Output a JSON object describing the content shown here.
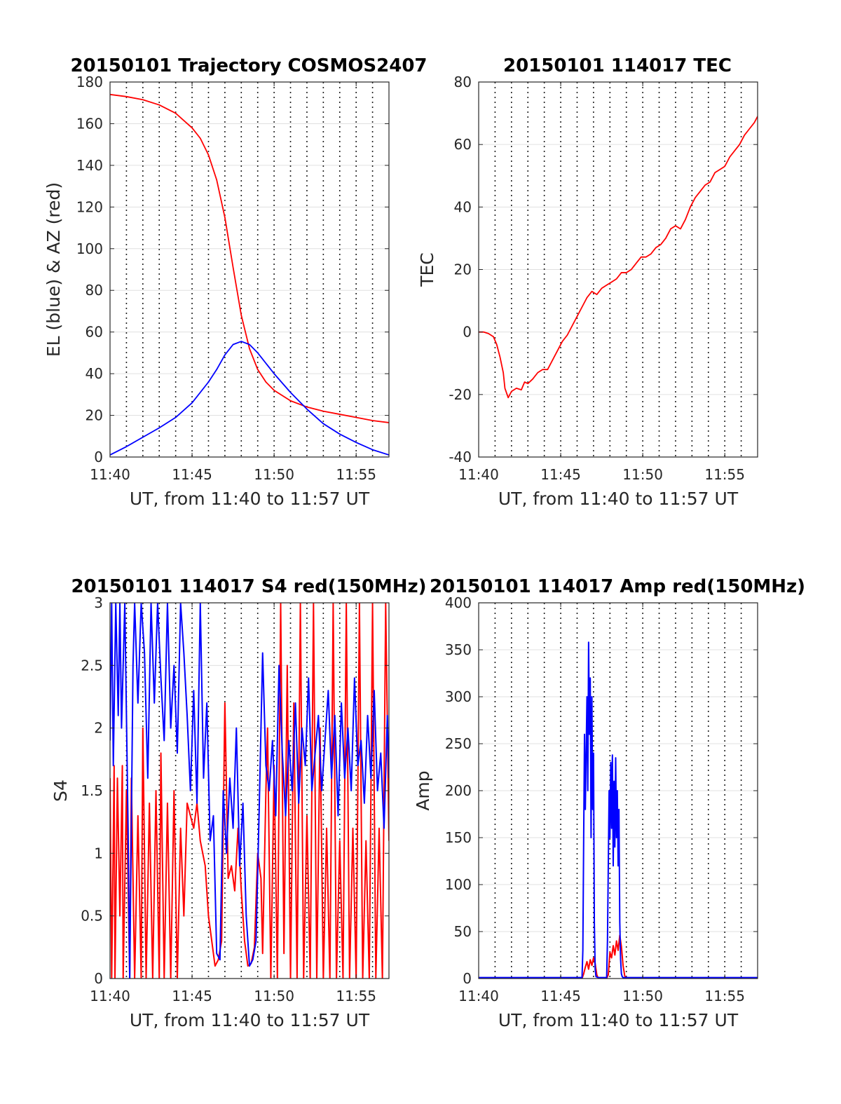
{
  "colors": {
    "red": "#ff0000",
    "blue": "#0000ff"
  },
  "chart_data": [
    {
      "type": "line",
      "title": "20150101 Trajectory COSMOS2407",
      "xlabel": "UT, from 11:40 to 11:57 UT",
      "ylabel": "EL (blue) & AZ (red)",
      "xlim": [
        0,
        17
      ],
      "ylim": [
        0,
        180
      ],
      "xticks": [
        0,
        5,
        10,
        15
      ],
      "xtick_labels": [
        "11:40",
        "11:45",
        "11:50",
        "11:55"
      ],
      "yticks": [
        0,
        20,
        40,
        60,
        80,
        100,
        120,
        140,
        160,
        180
      ],
      "ytick_labels": [
        "0",
        "20",
        "40",
        "60",
        "80",
        "100",
        "120",
        "140",
        "160",
        "180"
      ],
      "vgrid_minutes": [
        1,
        2,
        3,
        4,
        5,
        6,
        7,
        8,
        9,
        10,
        11,
        12,
        13,
        14,
        15,
        16
      ],
      "series": [
        {
          "color": "red",
          "x": [
            0,
            1,
            2,
            3,
            4,
            5,
            5.5,
            6,
            6.5,
            7,
            7.5,
            8,
            8.5,
            9,
            9.5,
            10,
            11,
            12,
            13,
            14,
            15,
            16,
            17
          ],
          "y": [
            174,
            173,
            171.5,
            169,
            165,
            158,
            153,
            145,
            133,
            115,
            91,
            68,
            52,
            42,
            36,
            32,
            27,
            24,
            22,
            20.5,
            19,
            17.5,
            16.5
          ]
        },
        {
          "color": "blue",
          "x": [
            0,
            1,
            2,
            3,
            4,
            5,
            6,
            6.5,
            7,
            7.5,
            8,
            8.5,
            9,
            10,
            11,
            12,
            13,
            14,
            15,
            16,
            17
          ],
          "y": [
            1,
            5,
            9.5,
            14,
            19,
            26,
            36,
            42,
            49,
            54,
            55.5,
            54,
            50,
            40,
            31,
            23,
            16,
            11,
            7,
            3.5,
            1
          ]
        }
      ]
    },
    {
      "type": "line",
      "title": "20150101 114017 TEC",
      "xlabel": "UT, from 11:40 to 11:57 UT",
      "ylabel": "TEC",
      "xlim": [
        0,
        17
      ],
      "ylim": [
        -40,
        80
      ],
      "xticks": [
        0,
        5,
        10,
        15
      ],
      "xtick_labels": [
        "11:40",
        "11:45",
        "11:50",
        "11:55"
      ],
      "yticks": [
        -40,
        -20,
        0,
        20,
        40,
        60,
        80
      ],
      "ytick_labels": [
        "-40",
        "-20",
        "0",
        "20",
        "40",
        "60",
        "80"
      ],
      "vgrid_minutes": [
        1,
        2,
        3,
        4,
        5,
        6,
        7,
        8,
        9,
        10,
        11,
        12,
        13,
        14,
        15,
        16
      ],
      "series": [
        {
          "color": "red",
          "x": [
            0,
            0.3,
            0.6,
            0.9,
            1.1,
            1.3,
            1.5,
            1.6,
            1.8,
            2.0,
            2.3,
            2.6,
            2.8,
            3.0,
            3.3,
            3.6,
            3.9,
            4.2,
            4.5,
            4.8,
            5.1,
            5.4,
            5.7,
            6.0,
            6.3,
            6.6,
            6.9,
            7.2,
            7.5,
            7.8,
            8.1,
            8.4,
            8.7,
            9.0,
            9.3,
            9.6,
            9.9,
            10.2,
            10.5,
            10.8,
            11.1,
            11.4,
            11.7,
            12.0,
            12.3,
            12.6,
            12.9,
            13.2,
            13.5,
            13.8,
            14.1,
            14.4,
            14.7,
            15.0,
            15.3,
            15.6,
            15.9,
            16.2,
            16.5,
            16.8,
            17.0
          ],
          "y": [
            0,
            0,
            -0.5,
            -1.5,
            -4,
            -8,
            -13,
            -18,
            -21,
            -19,
            -18,
            -18.5,
            -16,
            -16.5,
            -15,
            -13,
            -12,
            -12,
            -9,
            -6,
            -3,
            -1,
            2,
            5,
            8,
            11,
            13,
            12,
            14,
            15,
            16,
            17,
            19,
            19,
            20,
            22,
            24,
            24,
            25,
            27,
            28,
            30,
            33,
            34,
            33,
            36,
            40,
            43,
            45,
            47,
            48,
            51,
            52,
            53,
            56,
            58,
            60,
            63,
            65,
            67,
            69
          ]
        }
      ]
    },
    {
      "type": "line",
      "title": "20150101 114017 S4 red(150MHz)",
      "xlabel": "UT, from 11:40 to 11:57 UT",
      "ylabel": "S4",
      "xlim": [
        0,
        17
      ],
      "ylim": [
        0,
        3
      ],
      "xticks": [
        0,
        5,
        10,
        15
      ],
      "xtick_labels": [
        "11:40",
        "11:45",
        "11:50",
        "11:55"
      ],
      "yticks": [
        0,
        0.5,
        1,
        1.5,
        2,
        2.5,
        3
      ],
      "ytick_labels": [
        "0",
        "0.5",
        "1",
        "1.5",
        "2",
        "2.5",
        "3"
      ],
      "vgrid_minutes": [
        1,
        2,
        3,
        4,
        5,
        6,
        7,
        8,
        9,
        10,
        11,
        12,
        13,
        14,
        15,
        16
      ],
      "series": [
        {
          "color": "red",
          "x": [
            0,
            0.1,
            0.25,
            0.3,
            0.45,
            0.6,
            0.75,
            0.8,
            1.0,
            1.2,
            1.3,
            1.5,
            1.7,
            1.9,
            2.0,
            2.2,
            2.4,
            2.6,
            2.8,
            3.0,
            3.1,
            3.3,
            3.5,
            3.7,
            3.9,
            4.1,
            4.3,
            4.5,
            4.7,
            4.9,
            5.1,
            5.3,
            5.5,
            5.8,
            6.0,
            6.2,
            6.4,
            6.6,
            6.8,
            7.0,
            7.2,
            7.4,
            7.6,
            7.8,
            8.0,
            8.2,
            8.4,
            8.6,
            8.8,
            9.0,
            9.2,
            9.3,
            9.5,
            9.6,
            9.8,
            10.0,
            10.2,
            10.4,
            10.6,
            10.8,
            11.0,
            11.2,
            11.4,
            11.6,
            11.8,
            12.0,
            12.2,
            12.4,
            12.6,
            12.8,
            13.0,
            13.2,
            13.4,
            13.6,
            13.8,
            14.0,
            14.2,
            14.4,
            14.6,
            14.8,
            15.0,
            15.2,
            15.4,
            15.6,
            15.8,
            16.0,
            16.2,
            16.4,
            16.6,
            16.8,
            17.0
          ],
          "y": [
            1.6,
            0,
            1.7,
            0,
            1.6,
            0.5,
            1.7,
            0,
            1.5,
            0,
            1.6,
            0,
            1.3,
            0,
            2.0,
            0,
            1.4,
            0,
            1.5,
            0,
            1.8,
            0,
            1.4,
            0,
            1.5,
            0,
            1.2,
            0.5,
            1.4,
            1.3,
            1.2,
            1.4,
            1.1,
            0.9,
            0.5,
            0.3,
            0.1,
            0.15,
            0.3,
            2.2,
            0.8,
            0.9,
            0.7,
            1.2,
            0.7,
            0.3,
            0.1,
            0.12,
            0.25,
            1.0,
            0.8,
            0.2,
            1.5,
            2.0,
            0,
            1.7,
            0,
            3.0,
            0.2,
            2.5,
            0,
            2.2,
            0,
            3.0,
            0,
            1.3,
            0,
            3.0,
            0,
            2.0,
            0,
            1.2,
            0,
            3.0,
            0,
            1.1,
            0,
            3.0,
            0,
            1.2,
            0,
            3.0,
            0,
            1.1,
            0,
            3.0,
            0,
            1.2,
            0,
            3.0,
            1.1
          ]
        },
        {
          "color": "blue",
          "x": [
            0,
            0.1,
            0.2,
            0.35,
            0.5,
            0.6,
            0.7,
            0.9,
            1.1,
            1.2,
            1.4,
            1.5,
            1.7,
            1.9,
            2.1,
            2.3,
            2.5,
            2.7,
            2.9,
            3.1,
            3.3,
            3.5,
            3.7,
            3.9,
            4.1,
            4.3,
            4.5,
            4.7,
            4.9,
            5.1,
            5.3,
            5.5,
            5.7,
            5.9,
            6.1,
            6.3,
            6.5,
            6.7,
            6.9,
            7.1,
            7.3,
            7.5,
            7.7,
            7.9,
            8.1,
            8.3,
            8.5,
            8.7,
            8.9,
            9.1,
            9.3,
            9.5,
            9.7,
            9.9,
            10.1,
            10.3,
            10.5,
            10.7,
            10.9,
            11.1,
            11.3,
            11.5,
            11.7,
            11.9,
            12.1,
            12.3,
            12.5,
            12.7,
            12.9,
            13.1,
            13.3,
            13.5,
            13.7,
            13.9,
            14.1,
            14.3,
            14.5,
            14.7,
            14.9,
            15.1,
            15.3,
            15.5,
            15.7,
            15.9,
            16.1,
            16.3,
            16.5,
            16.7,
            16.9,
            17.0
          ],
          "y": [
            1.9,
            3.0,
            1.7,
            3.0,
            2.1,
            3.0,
            2.0,
            3.0,
            1.2,
            0,
            2.5,
            3.0,
            2.2,
            3.0,
            2.6,
            1.6,
            3.0,
            2.2,
            3.0,
            2.4,
            1.9,
            3.0,
            2.0,
            2.5,
            1.8,
            3.0,
            2.6,
            2.1,
            1.5,
            2.3,
            1.4,
            3.0,
            1.6,
            2.2,
            1.1,
            1.3,
            0.2,
            0.15,
            1.5,
            1.0,
            1.6,
            1.2,
            2.0,
            0.9,
            1.4,
            0.5,
            0.1,
            0.15,
            0.3,
            1.4,
            2.6,
            1.7,
            1.5,
            1.9,
            1.3,
            2.5,
            1.8,
            1.3,
            1.9,
            1.5,
            2.2,
            1.4,
            2.0,
            1.7,
            2.4,
            1.5,
            1.8,
            2.1,
            1.5,
            1.9,
            2.3,
            1.6,
            2.1,
            1.3,
            2.2,
            1.6,
            2.0,
            1.5,
            2.4,
            1.7,
            1.9,
            1.4,
            2.1,
            1.6,
            2.3,
            1.5,
            1.8,
            1.2,
            2.1,
            1.6
          ]
        }
      ]
    },
    {
      "type": "line",
      "title": "20150101 114017 Amp red(150MHz)",
      "xlabel": "UT, from 11:40 to 11:57 UT",
      "ylabel": "Amp",
      "xlim": [
        0,
        17
      ],
      "ylim": [
        0,
        400
      ],
      "xticks": [
        0,
        5,
        10,
        15
      ],
      "xtick_labels": [
        "11:40",
        "11:45",
        "11:50",
        "11:55"
      ],
      "yticks": [
        0,
        50,
        100,
        150,
        200,
        250,
        300,
        350,
        400
      ],
      "ytick_labels": [
        "0",
        "50",
        "100",
        "150",
        "200",
        "250",
        "300",
        "350",
        "400"
      ],
      "vgrid_minutes": [
        1,
        2,
        3,
        4,
        5,
        6,
        7,
        8,
        9,
        10,
        11,
        12,
        13,
        14,
        15,
        16
      ],
      "series": [
        {
          "color": "red",
          "x": [
            0,
            6.3,
            6.4,
            6.5,
            6.6,
            6.7,
            6.8,
            6.9,
            7.0,
            7.1,
            7.2,
            7.3,
            7.5,
            7.8,
            7.9,
            8.0,
            8.1,
            8.2,
            8.3,
            8.4,
            8.5,
            8.6,
            8.7,
            8.8,
            8.9,
            9.0,
            17.0
          ],
          "y": [
            0,
            0,
            5,
            12,
            18,
            10,
            20,
            14,
            22,
            16,
            4,
            0,
            0,
            0,
            4,
            28,
            22,
            35,
            25,
            40,
            30,
            46,
            34,
            14,
            3,
            0,
            0
          ]
        },
        {
          "color": "blue",
          "x": [
            0,
            6.3,
            6.35,
            6.4,
            6.45,
            6.5,
            6.55,
            6.6,
            6.65,
            6.7,
            6.75,
            6.8,
            6.85,
            6.9,
            6.95,
            7.0,
            7.05,
            7.1,
            7.15,
            7.3,
            7.8,
            7.85,
            7.9,
            7.95,
            8.0,
            8.05,
            8.1,
            8.15,
            8.2,
            8.25,
            8.3,
            8.35,
            8.4,
            8.45,
            8.5,
            8.55,
            8.6,
            8.65,
            8.7,
            8.75,
            8.8,
            17.0
          ],
          "y": [
            1,
            1,
            30,
            150,
            260,
            180,
            240,
            300,
            200,
            358,
            260,
            320,
            150,
            300,
            180,
            240,
            60,
            10,
            2,
            1,
            1,
            40,
            120,
            200,
            150,
            230,
            160,
            238,
            120,
            210,
            140,
            235,
            150,
            200,
            120,
            180,
            60,
            20,
            5,
            2,
            1,
            1
          ]
        }
      ]
    }
  ]
}
